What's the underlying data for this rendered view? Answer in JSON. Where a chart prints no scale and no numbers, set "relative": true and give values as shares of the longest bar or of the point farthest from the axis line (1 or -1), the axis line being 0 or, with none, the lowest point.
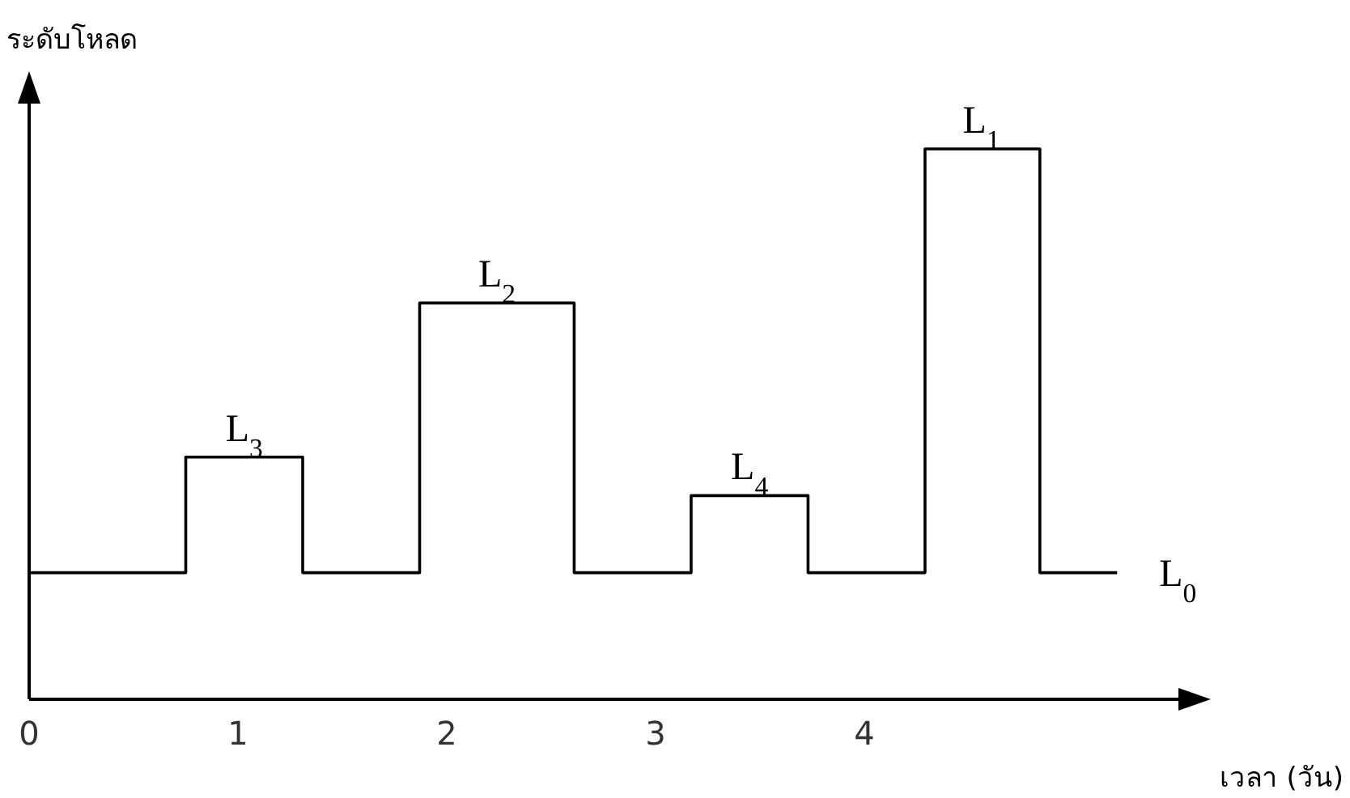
{
  "chart_data": {
    "type": "step",
    "relative": true,
    "ylabel": "ระดับโหลด",
    "xlabel": "เวลา (วัน)",
    "x": [
      0,
      0.75,
      1.31,
      1.87,
      2.61,
      3.17,
      3.73,
      4.29,
      4.84,
      5.21
    ],
    "values": [
      0.23,
      0.44,
      0.23,
      0.72,
      0.23,
      0.37,
      0.23,
      1,
      0.23,
      0.23
    ],
    "color": "#000000",
    "xlim": [
      0,
      5.55
    ],
    "xticks": [
      0,
      1,
      2,
      3,
      4
    ],
    "grid": false,
    "annotations": [
      {
        "text": "L$_{3}$",
        "x": 1.03,
        "y": 0.44
      },
      {
        "text": "L$_{2}$",
        "x": 2.24,
        "y": 0.72
      },
      {
        "text": "L$_{4}$",
        "x": 3.45,
        "y": 0.37
      },
      {
        "text": "L$_{1}$",
        "x": 4.56,
        "y": 1
      },
      {
        "text": "L$_{0}$",
        "x": 5.21,
        "y": 0.23
      }
    ]
  }
}
